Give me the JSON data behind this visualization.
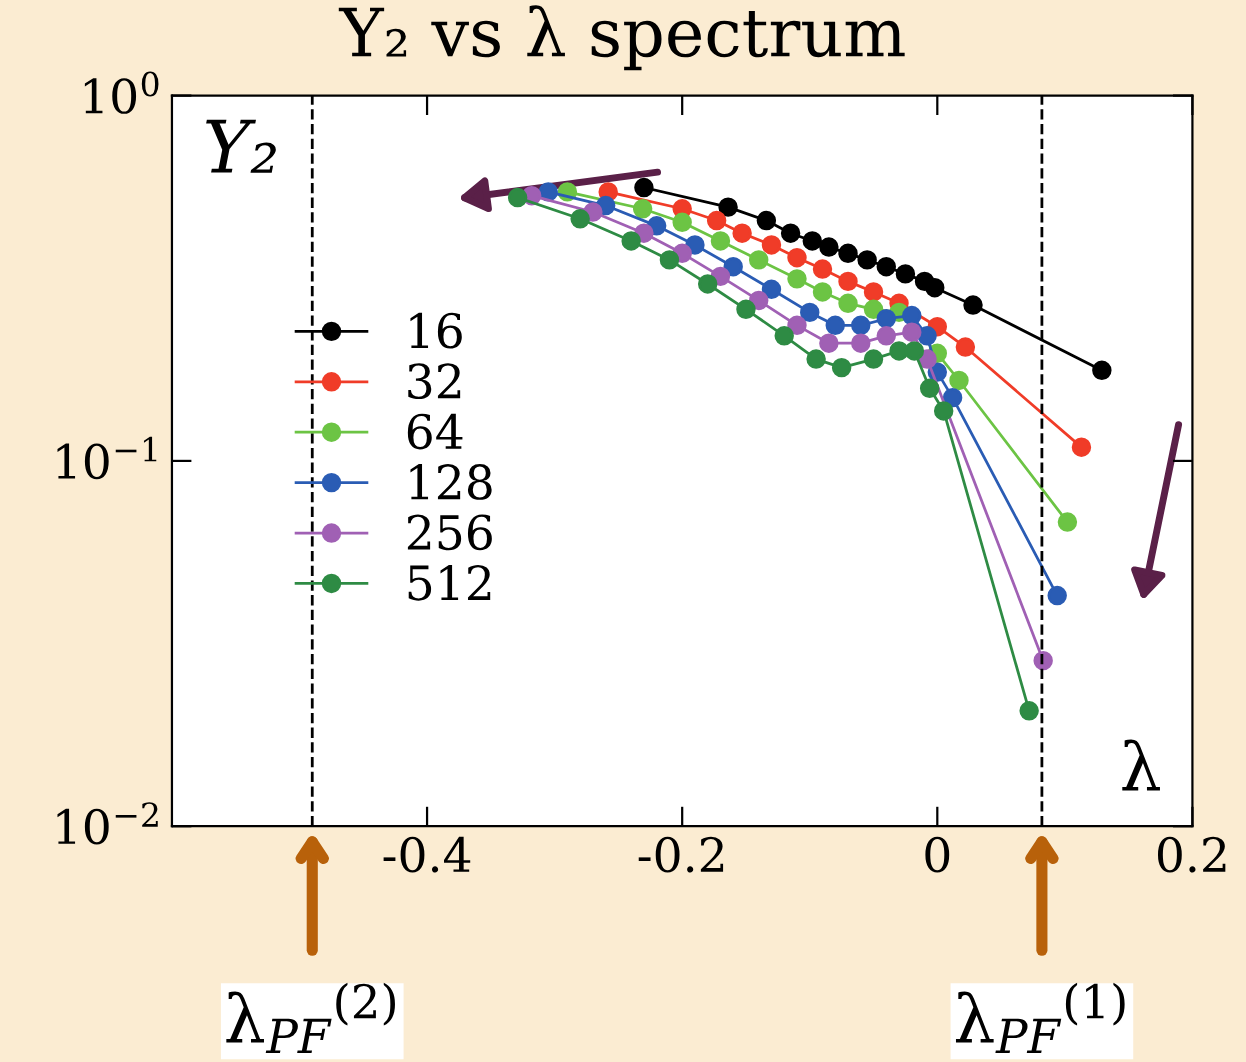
{
  "chart_data": {
    "type": "line",
    "title": "Y₂ vs λ spectrum",
    "ylabel": "Y₂",
    "xlabel": "λ",
    "log": "y",
    "xlim": [
      -0.6,
      0.2
    ],
    "xticks": [
      {
        "value": -0.4,
        "label": "-0.4"
      },
      {
        "value": -0.2,
        "label": "-0.2"
      },
      0,
      0.2
    ],
    "ylim": [
      0.01,
      1
    ],
    "yticks": [
      {
        "value": 0.01,
        "label": "10$^{−2}$"
      },
      {
        "value": 0.1,
        "label": "10$^{−1}$"
      },
      {
        "value": 1,
        "label": "10$^{0}$"
      }
    ],
    "grid": false,
    "legend": "center left",
    "marker": "circle",
    "line_style": "solid",
    "series": [
      {
        "name": "16",
        "color": "#000000",
        "x": [
          -0.23,
          -0.164,
          -0.134,
          -0.115,
          -0.098,
          -0.085,
          -0.07,
          -0.055,
          -0.04,
          -0.025,
          -0.01,
          -0.002,
          0.028,
          0.129
        ],
        "values": [
          0.56,
          0.495,
          0.455,
          0.42,
          0.4,
          0.385,
          0.37,
          0.355,
          0.34,
          0.325,
          0.31,
          0.298,
          0.267,
          0.177
        ]
      },
      {
        "name": "32",
        "color": "#f03c28",
        "x": [
          -0.258,
          -0.2,
          -0.173,
          -0.153,
          -0.13,
          -0.11,
          -0.09,
          -0.07,
          -0.05,
          -0.03,
          0,
          0.022,
          0.113
        ],
        "values": [
          0.545,
          0.49,
          0.455,
          0.42,
          0.39,
          0.36,
          0.335,
          0.31,
          0.29,
          0.27,
          0.233,
          0.205,
          0.109
        ]
      },
      {
        "name": "64",
        "color": "#6cc444",
        "x": [
          -0.29,
          -0.231,
          -0.2,
          -0.17,
          -0.14,
          -0.11,
          -0.09,
          -0.07,
          -0.05,
          -0.03,
          0,
          0.017,
          0.102
        ],
        "values": [
          0.545,
          0.49,
          0.45,
          0.4,
          0.355,
          0.315,
          0.29,
          0.27,
          0.26,
          0.255,
          0.197,
          0.166,
          0.068
        ]
      },
      {
        "name": "128",
        "color": "#2a5cb4",
        "x": [
          -0.305,
          -0.26,
          -0.22,
          -0.19,
          -0.16,
          -0.13,
          -0.1,
          -0.08,
          -0.06,
          -0.04,
          -0.02,
          -0.008,
          0,
          0.012,
          0.094
        ],
        "values": [
          0.545,
          0.5,
          0.44,
          0.39,
          0.34,
          0.295,
          0.255,
          0.235,
          0.235,
          0.245,
          0.25,
          0.22,
          0.175,
          0.149,
          0.0428
        ]
      },
      {
        "name": "256",
        "color": "#a060b4",
        "x": [
          -0.318,
          -0.27,
          -0.23,
          -0.2,
          -0.17,
          -0.14,
          -0.11,
          -0.085,
          -0.06,
          -0.04,
          -0.02,
          -0.008,
          0.083
        ],
        "values": [
          0.532,
          0.48,
          0.42,
          0.37,
          0.32,
          0.275,
          0.235,
          0.21,
          0.21,
          0.22,
          0.225,
          0.19,
          0.0284
        ]
      },
      {
        "name": "512",
        "color": "#2e8b44",
        "x": [
          -0.329,
          -0.28,
          -0.24,
          -0.21,
          -0.18,
          -0.15,
          -0.12,
          -0.095,
          -0.075,
          -0.05,
          -0.03,
          -0.018,
          -0.006,
          0.005,
          0.072
        ],
        "values": [
          0.526,
          0.46,
          0.4,
          0.355,
          0.305,
          0.26,
          0.22,
          0.19,
          0.18,
          0.19,
          0.2,
          0.2,
          0.158,
          0.137,
          0.0207
        ]
      }
    ],
    "ref_lines": [
      {
        "axis": "x",
        "value": -0.49,
        "label": "λ$_{PF}$$^{(2)}$",
        "color": "#000000",
        "line_style": "dashed"
      },
      {
        "axis": "x",
        "value": 0.082,
        "label": "λ$_{PF}$$^{(1)}$",
        "color": "#000000",
        "line_style": "dashed"
      }
    ]
  }
}
